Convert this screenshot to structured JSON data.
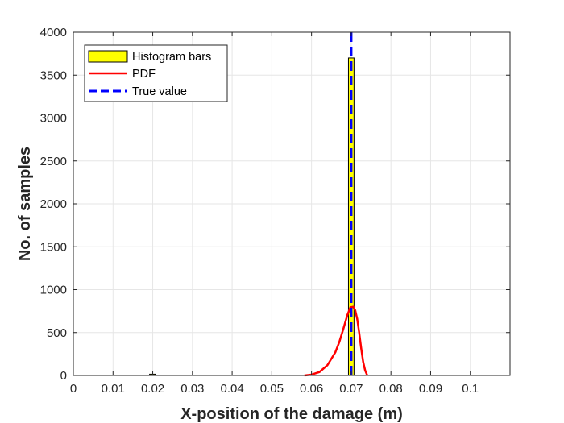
{
  "chart_data": {
    "type": "bar",
    "title": "",
    "xlabel": "X-position of the damage (m)",
    "ylabel": "No. of samples",
    "xlim": [
      0,
      0.11
    ],
    "ylim": [
      0,
      4000
    ],
    "x_ticks": [
      0,
      0.01,
      0.02,
      0.03,
      0.04,
      0.05,
      0.06,
      0.07,
      0.08,
      0.09,
      0.1
    ],
    "x_tick_labels": [
      "0",
      "0.01",
      "0.02",
      "0.03",
      "0.04",
      "0.05",
      "0.06",
      "0.07",
      "0.08",
      "0.09",
      "0.1"
    ],
    "y_ticks": [
      0,
      500,
      1000,
      1500,
      2000,
      2500,
      3000,
      3500,
      4000
    ],
    "y_tick_labels": [
      "0",
      "500",
      "1000",
      "1500",
      "2000",
      "2500",
      "3000",
      "3500",
      "4000"
    ],
    "grid": true,
    "legend_position": "top-left",
    "series": [
      {
        "name": "Histogram bars",
        "kind": "histogram",
        "color": "#ffff00",
        "edge_color": "#000000",
        "bins": [
          {
            "x0": 0.0192,
            "x1": 0.0206,
            "count": 15
          },
          {
            "x0": 0.0693,
            "x1": 0.0707,
            "count": 3700
          }
        ]
      },
      {
        "name": "PDF",
        "kind": "line",
        "color": "#ff0000",
        "x": [
          0.0582,
          0.06,
          0.062,
          0.064,
          0.066,
          0.067,
          0.068,
          0.069,
          0.0698,
          0.0705,
          0.071,
          0.0715,
          0.072,
          0.0725,
          0.073,
          0.0735,
          0.074
        ],
        "y": [
          0,
          10,
          40,
          120,
          270,
          390,
          540,
          700,
          795,
          800,
          760,
          660,
          500,
          320,
          160,
          60,
          5
        ]
      },
      {
        "name": "True value",
        "kind": "vline",
        "color": "#0000ff",
        "dash": "dashed",
        "x": 0.07,
        "y": [
          0,
          4000
        ]
      }
    ]
  }
}
